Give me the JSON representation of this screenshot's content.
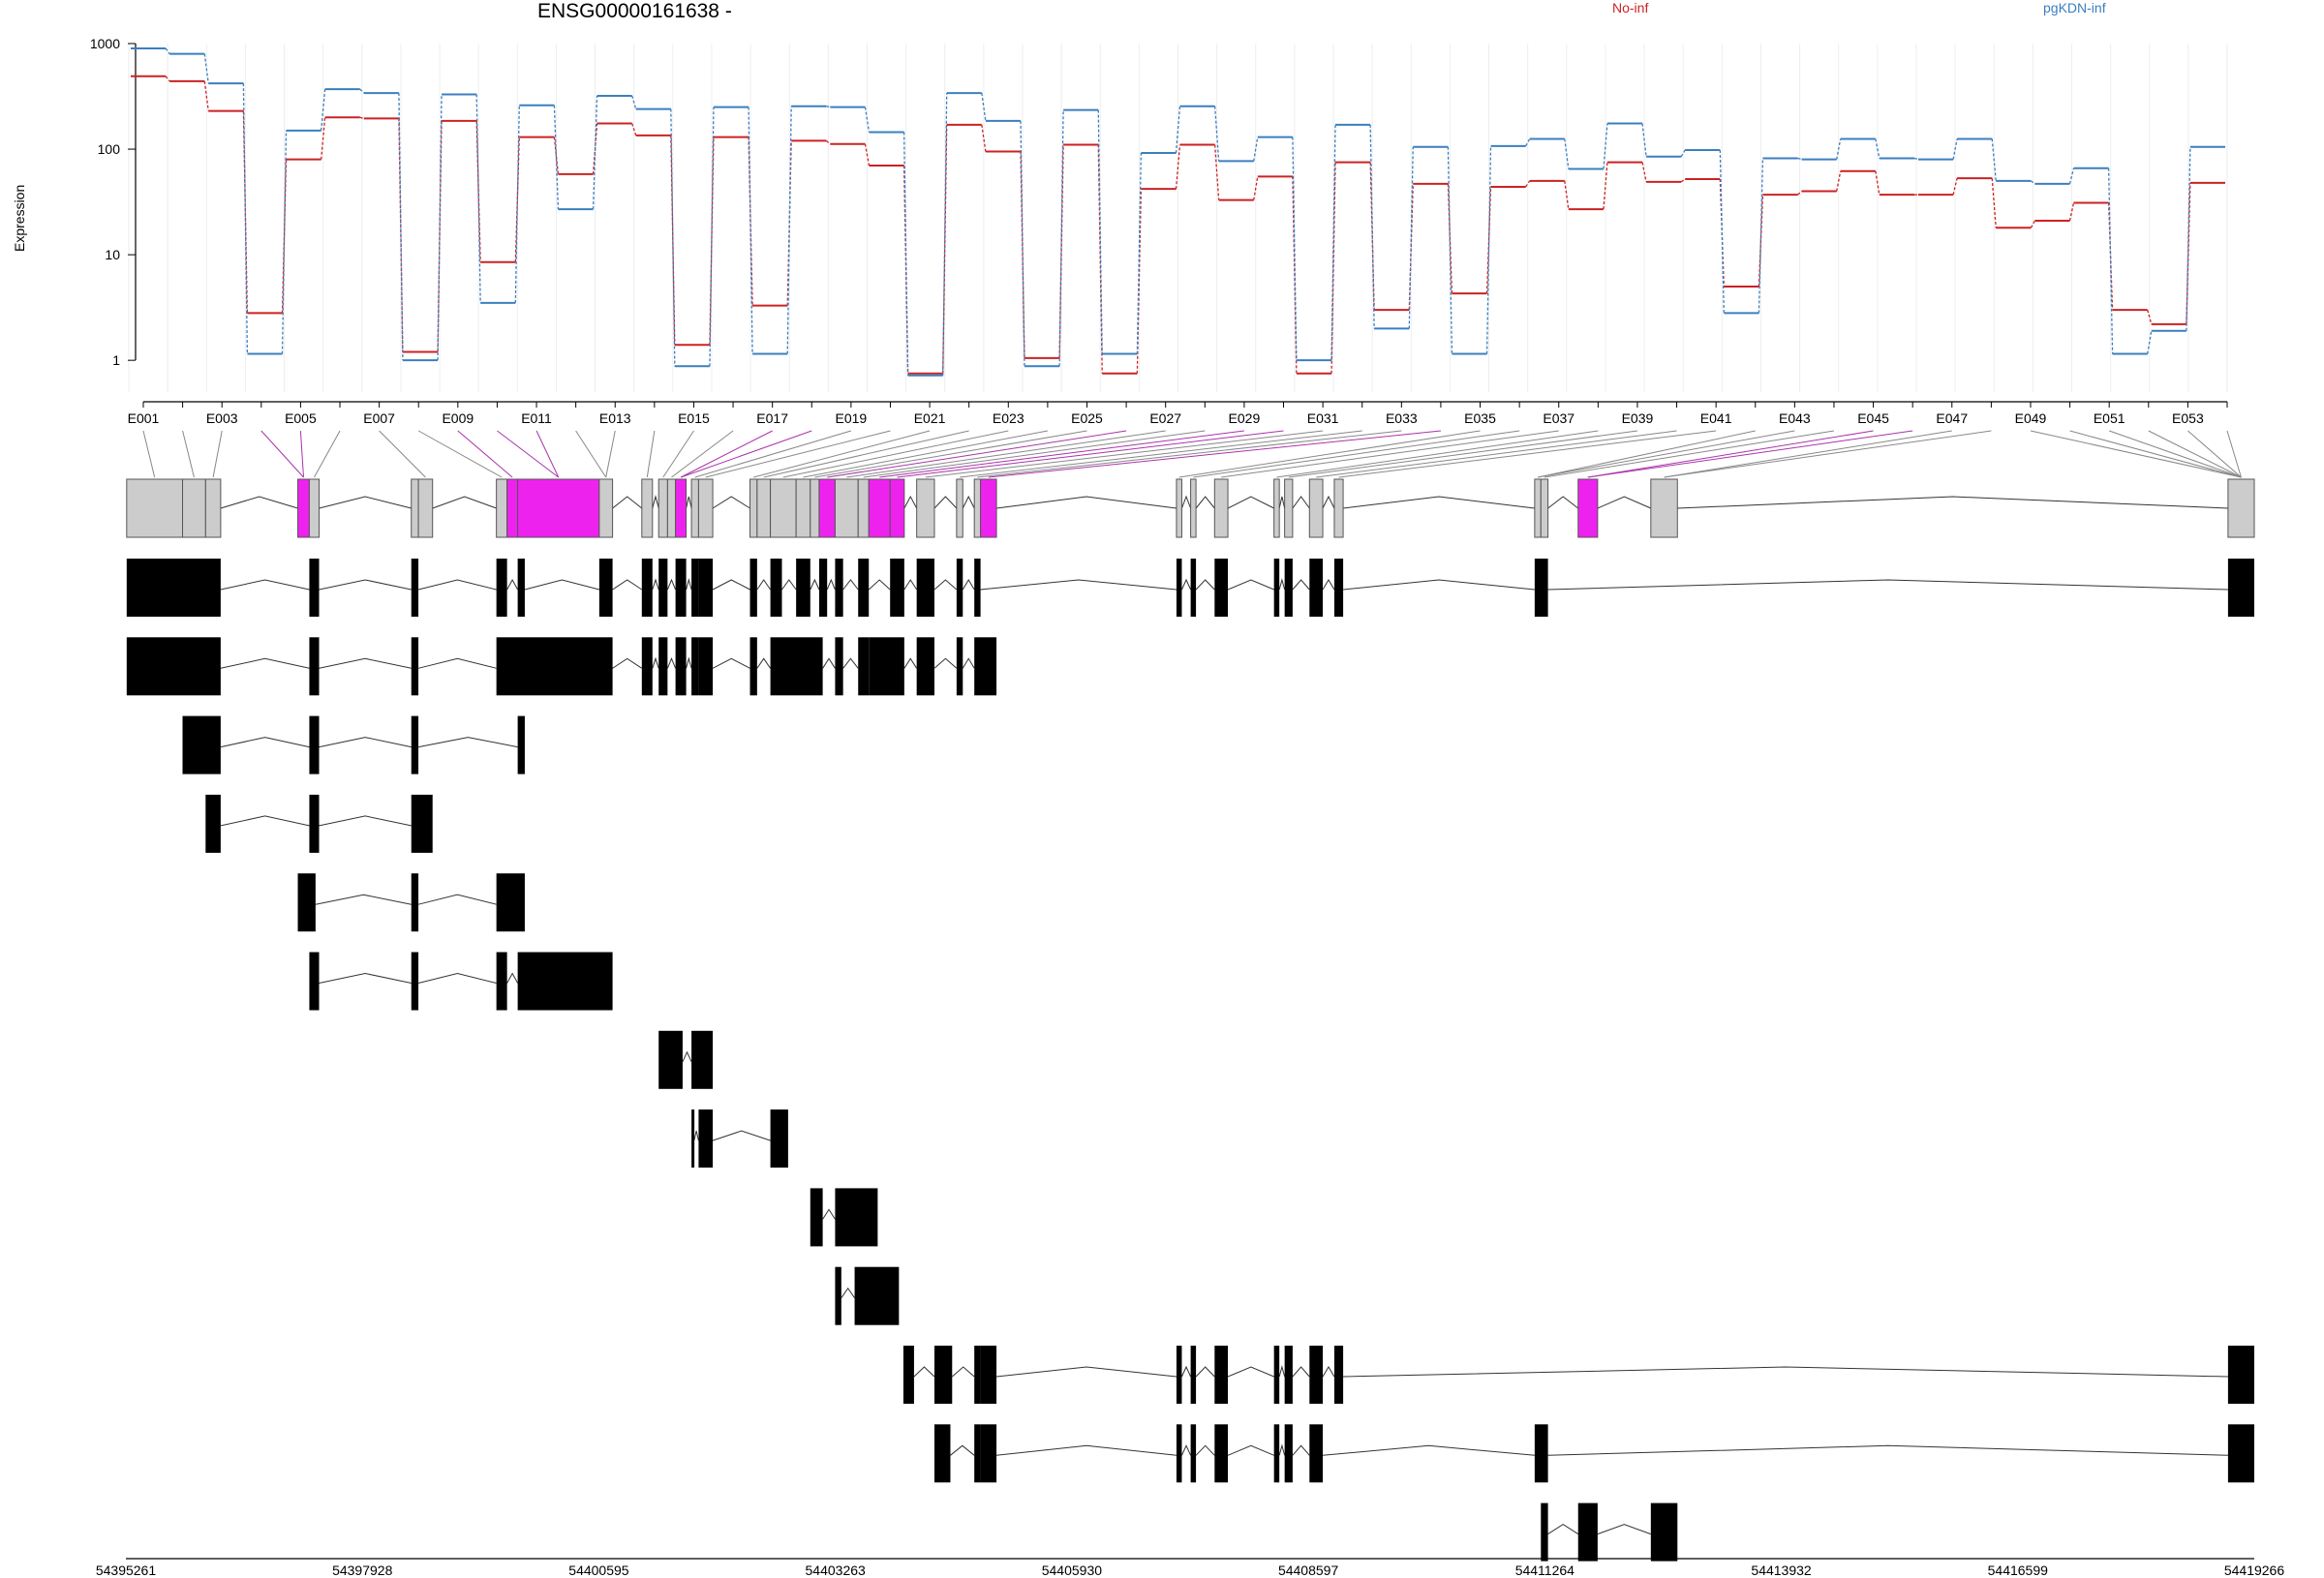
{
  "chart_data": {
    "type": "line",
    "title": "ENSG00000161638 -",
    "ylabel": "Expression",
    "yscale": "log",
    "ylim": [
      0.5,
      1000
    ],
    "yticks": [
      "1000",
      "100",
      "10",
      "1"
    ],
    "legend": [
      {
        "name": "No-inf",
        "color": "#cc2222"
      },
      {
        "name": "pgKDN-inf",
        "color": "#3b7fbf"
      }
    ],
    "exon_labels": [
      "E001",
      "E003",
      "E005",
      "E007",
      "E009",
      "E011",
      "E013",
      "E015",
      "E017",
      "E019",
      "E021",
      "E023",
      "E025",
      "E027",
      "E029",
      "E031",
      "E033",
      "E035",
      "E037",
      "E039",
      "E041",
      "E043",
      "E045",
      "E047",
      "E049",
      "E051",
      "E053"
    ],
    "exons": [
      "E001",
      "E002",
      "E003",
      "E004",
      "E005",
      "E006",
      "E007",
      "E008",
      "E009",
      "E010",
      "E011",
      "E012",
      "E013",
      "E014",
      "E015",
      "E016",
      "E017",
      "E018",
      "E019",
      "E020",
      "E021",
      "E022",
      "E023",
      "E024",
      "E025",
      "E026",
      "E027",
      "E028",
      "E029",
      "E030",
      "E031",
      "E032",
      "E033",
      "E034",
      "E035",
      "E036",
      "E037",
      "E038",
      "E039",
      "E040",
      "E041",
      "E042",
      "E043",
      "E044",
      "E045",
      "E046",
      "E047",
      "E048",
      "E049",
      "E050",
      "E051",
      "E052",
      "E053",
      "E054"
    ],
    "series": [
      {
        "name": "No-inf",
        "color": "#cc2222",
        "values": [
          490,
          440,
          230,
          2.8,
          80,
          200,
          195,
          1.2,
          185,
          8.5,
          130,
          58,
          175,
          135,
          1.4,
          130,
          3.3,
          120,
          112,
          70,
          0.75,
          170,
          95,
          1.05,
          110,
          0.75,
          42,
          110,
          33,
          55,
          0.75,
          75,
          3.0,
          47,
          4.3,
          44,
          50,
          27,
          75,
          49,
          52,
          5.0,
          37,
          40,
          62,
          37,
          37,
          53,
          18,
          21,
          31,
          3.0,
          2.2,
          48
        ]
      },
      {
        "name": "pgKDN-inf",
        "color": "#3b7fbf",
        "values": [
          900,
          800,
          420,
          1.15,
          150,
          370,
          340,
          1.0,
          330,
          3.5,
          260,
          27,
          320,
          240,
          0.88,
          250,
          1.15,
          255,
          250,
          145,
          0.72,
          340,
          185,
          0.88,
          235,
          1.15,
          92,
          255,
          77,
          130,
          1.0,
          170,
          2.0,
          105,
          1.15,
          107,
          125,
          65,
          175,
          85,
          98,
          2.8,
          82,
          80,
          125,
          82,
          80,
          125,
          50,
          47,
          66,
          1.15,
          1.9,
          105
        ]
      }
    ],
    "genomic_axis": [
      "54395261",
      "54397928",
      "54400595",
      "54403263",
      "54405930",
      "54408597",
      "54411264",
      "54413932",
      "54416599",
      "54419266"
    ],
    "genomic_range": [
      54395261,
      54419266
    ],
    "highlight_color": "#ee22ee",
    "exon_block_color": "#cccccc"
  }
}
